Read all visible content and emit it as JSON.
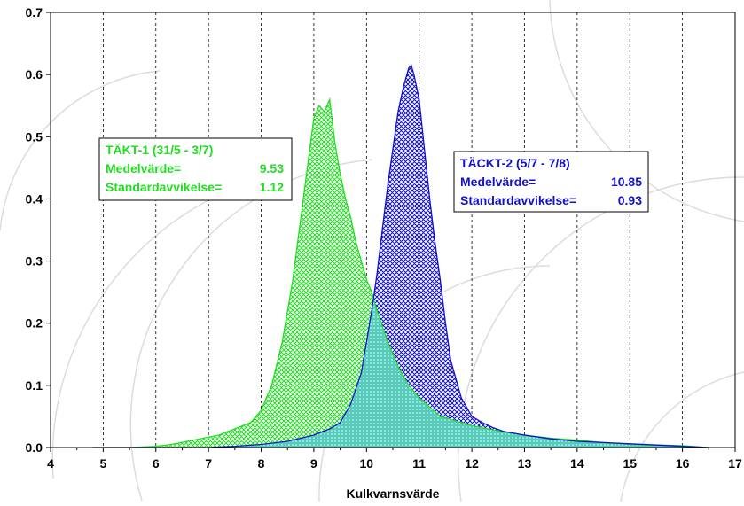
{
  "chart_data": {
    "type": "area",
    "xlabel": "Kulkvarnsvärde",
    "ylabel": "",
    "xlim": [
      4,
      17
    ],
    "ylim": [
      0,
      0.7
    ],
    "xticks": [
      4,
      5,
      6,
      7,
      8,
      9,
      10,
      11,
      12,
      13,
      14,
      15,
      16,
      17
    ],
    "xtick_labels": [
      "4",
      "5",
      "6",
      "7",
      "8",
      "9",
      "10",
      "11",
      "12",
      "13",
      "14",
      "15",
      "16",
      "17"
    ],
    "yticks": [
      0.0,
      0.1,
      0.2,
      0.3,
      0.4,
      0.5,
      0.6,
      0.7
    ],
    "ytick_labels": [
      "0.0",
      "0.1",
      "0.2",
      "0.3",
      "0.4",
      "0.5",
      "0.6",
      "0.7"
    ],
    "grid": "vertical dashed",
    "series": [
      {
        "color": "#22dd22",
        "x": [
          4.8,
          5.5,
          6.0,
          6.3,
          6.6,
          6.9,
          7.2,
          7.5,
          7.8,
          8.0,
          8.2,
          8.4,
          8.6,
          8.8,
          9.0,
          9.1,
          9.2,
          9.3,
          9.4,
          9.5,
          9.6,
          9.7,
          9.8,
          9.9,
          10.0,
          10.1,
          10.2,
          10.4,
          10.6,
          10.8,
          11.0,
          11.2,
          11.4,
          11.6,
          11.8,
          12.0,
          12.3,
          12.6,
          13.0,
          13.5,
          14.0,
          14.5,
          15.0,
          15.5,
          16.0,
          16.5
        ],
        "values": [
          0.0,
          0.0,
          0.002,
          0.005,
          0.01,
          0.015,
          0.02,
          0.03,
          0.04,
          0.06,
          0.1,
          0.17,
          0.27,
          0.4,
          0.53,
          0.55,
          0.54,
          0.56,
          0.49,
          0.44,
          0.4,
          0.37,
          0.33,
          0.3,
          0.27,
          0.25,
          0.22,
          0.17,
          0.13,
          0.1,
          0.08,
          0.065,
          0.05,
          0.045,
          0.04,
          0.035,
          0.03,
          0.025,
          0.02,
          0.015,
          0.012,
          0.008,
          0.005,
          0.004,
          0.003,
          0.0
        ]
      },
      {
        "color": "#1111cc",
        "x": [
          4.8,
          6.0,
          7.0,
          7.5,
          8.0,
          8.5,
          9.0,
          9.3,
          9.5,
          9.7,
          9.9,
          10.0,
          10.1,
          10.2,
          10.3,
          10.4,
          10.5,
          10.6,
          10.7,
          10.8,
          10.85,
          10.9,
          11.0,
          11.1,
          11.2,
          11.3,
          11.4,
          11.5,
          11.6,
          11.8,
          12.0,
          12.2,
          12.4,
          12.6,
          13.0,
          13.5,
          14.0,
          14.5,
          15.0,
          15.5,
          16.0,
          16.5
        ],
        "values": [
          0.0,
          0.0,
          0.0,
          0.002,
          0.005,
          0.01,
          0.02,
          0.03,
          0.04,
          0.07,
          0.12,
          0.17,
          0.22,
          0.28,
          0.35,
          0.42,
          0.48,
          0.54,
          0.58,
          0.61,
          0.615,
          0.6,
          0.56,
          0.48,
          0.4,
          0.33,
          0.27,
          0.2,
          0.14,
          0.08,
          0.05,
          0.04,
          0.032,
          0.026,
          0.02,
          0.014,
          0.01,
          0.008,
          0.006,
          0.004,
          0.002,
          0.0
        ]
      }
    ],
    "annotations": [
      {
        "color": "#22dd22",
        "title": "TÄKT-1 (31/5 - 3/7)",
        "mean_label": "Medelvärde=",
        "mean_value": "9.53",
        "std_label": "Standardavvikelse=",
        "std_value": "1.12"
      },
      {
        "color": "#1111cc",
        "title": "TÄCKT-2 (5/7 - 7/8)",
        "mean_label": "Medelvärde=",
        "mean_value": "10.85",
        "std_label": "Standardavvikelse=",
        "std_value": "0.93"
      }
    ]
  }
}
